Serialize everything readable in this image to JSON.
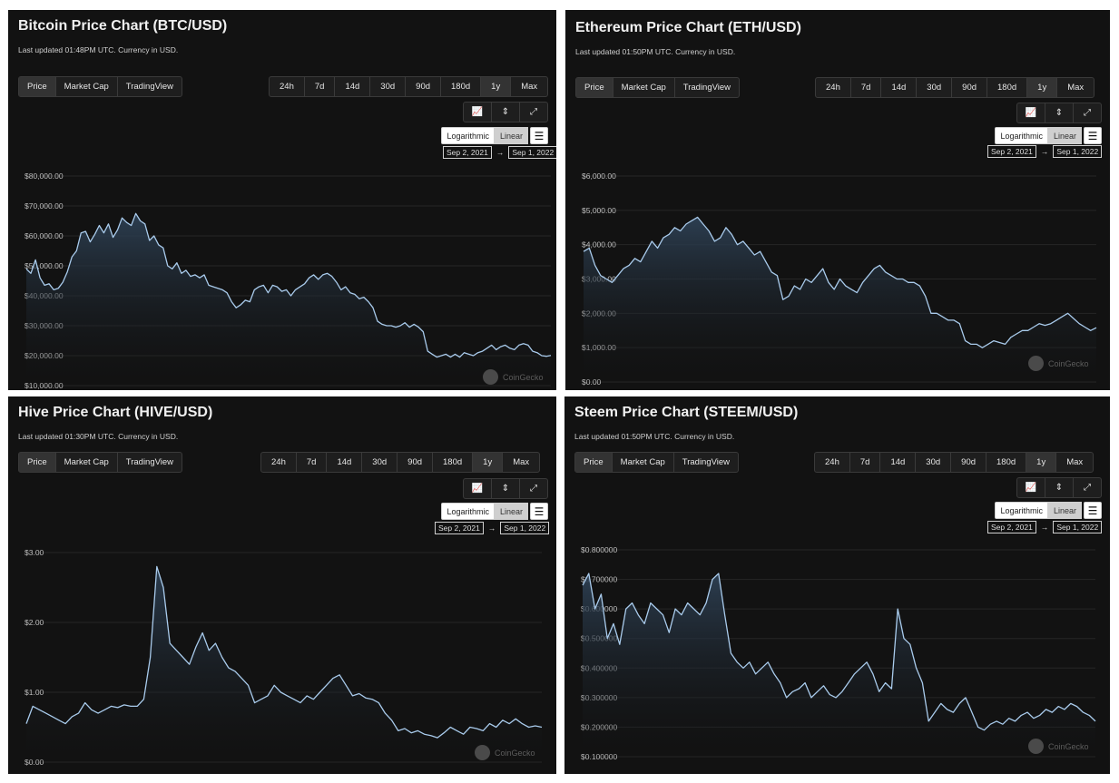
{
  "controls": {
    "tabs": [
      "Price",
      "Market Cap",
      "TradingView"
    ],
    "periods": [
      "24h",
      "7d",
      "14d",
      "30d",
      "90d",
      "180d",
      "1y",
      "Max"
    ],
    "active_period": "1y",
    "scale_log": "Logarithmic",
    "scale_linear": "Linear",
    "menu_glyph": "☰",
    "arrow": "→",
    "watermark": "CoinGecko"
  },
  "colors": {
    "line": "#a9cbec",
    "fill_top": "#2f4358",
    "grid": "#262626",
    "bg": "#121212"
  },
  "icons": [
    "line-chart-icon",
    "candlestick-icon",
    "fullscreen-icon"
  ],
  "panels": [
    {
      "id": "btc",
      "title": "Bitcoin Price Chart (BTC/USD)",
      "subtitle": "Last updated 01:48PM UTC. Currency in USD.",
      "range_start": "Sep 2, 2021",
      "range_end": "Sep 1, 2022",
      "show_watermark": true,
      "chart_data": {
        "type": "area",
        "title": "Bitcoin Price Chart (BTC/USD)",
        "x_start": "Sep 2, 2021",
        "x_end": "Sep 1, 2022",
        "y_ticks": [
          "$80,000.00",
          "$70,000.00",
          "$60,000.00",
          "$50,000.00",
          "$40,000.00",
          "$30,000.00",
          "$20,000.00",
          "$10,000.00"
        ],
        "ylim": [
          10000,
          80000
        ],
        "values": [
          49000,
          47500,
          52000,
          46000,
          43500,
          44000,
          42000,
          42500,
          44500,
          48000,
          53000,
          55000,
          61000,
          61500,
          58000,
          60500,
          63500,
          61000,
          64000,
          59500,
          62000,
          66000,
          64500,
          63500,
          67500,
          65000,
          64000,
          58500,
          60000,
          57000,
          56000,
          50000,
          49000,
          51000,
          47500,
          48500,
          46500,
          47000,
          46000,
          47000,
          43500,
          43000,
          42500,
          42000,
          41000,
          38000,
          36000,
          37000,
          38500,
          38000,
          42000,
          43000,
          43500,
          41000,
          43500,
          43000,
          41500,
          42000,
          40000,
          42000,
          43000,
          44000,
          46000,
          47000,
          45500,
          47000,
          47500,
          46500,
          44500,
          42000,
          43000,
          41000,
          40500,
          39000,
          39500,
          38000,
          36000,
          31500,
          30500,
          30000,
          30000,
          29500,
          30000,
          31000,
          29500,
          30500,
          29500,
          28000,
          21500,
          20500,
          19500,
          20000,
          20500,
          19500,
          20500,
          19500,
          21000,
          20500,
          20000,
          21000,
          21500,
          22500,
          23500,
          22000,
          23000,
          23500,
          22500,
          22000,
          23500,
          24000,
          23500,
          21500,
          21000,
          20000,
          19800,
          20100
        ],
        "xlabel": "",
        "ylabel": ""
      }
    },
    {
      "id": "eth",
      "title": "Ethereum Price Chart (ETH/USD)",
      "subtitle": "Last updated 01:50PM UTC. Currency in USD.",
      "range_start": "Sep 2, 2021",
      "range_end": "Sep 1, 2022",
      "show_watermark": true,
      "chart_data": {
        "type": "area",
        "title": "Ethereum Price Chart (ETH/USD)",
        "x_start": "Sep 2, 2021",
        "x_end": "Sep 1, 2022",
        "y_ticks": [
          "$6,000.00",
          "$5,000.00",
          "$4,000.00",
          "$3,000.00",
          "$2,000.00",
          "$1,000.00",
          "$0.00"
        ],
        "ylim": [
          0,
          6000
        ],
        "values": [
          3800,
          3900,
          3400,
          3100,
          3000,
          2900,
          3100,
          3300,
          3400,
          3600,
          3500,
          3800,
          4100,
          3900,
          4200,
          4300,
          4500,
          4400,
          4600,
          4700,
          4800,
          4600,
          4400,
          4100,
          4200,
          4500,
          4300,
          4000,
          4100,
          3900,
          3700,
          3800,
          3500,
          3200,
          3100,
          2400,
          2500,
          2800,
          2700,
          3000,
          2900,
          3100,
          3300,
          2900,
          2700,
          3000,
          2800,
          2700,
          2600,
          2900,
          3100,
          3300,
          3400,
          3200,
          3100,
          3000,
          3000,
          2900,
          2900,
          2800,
          2500,
          2000,
          2000,
          1900,
          1800,
          1800,
          1700,
          1200,
          1100,
          1100,
          1000,
          1100,
          1200,
          1150,
          1100,
          1300,
          1400,
          1500,
          1500,
          1600,
          1700,
          1650,
          1700,
          1800,
          1900,
          2000,
          1850,
          1700,
          1600,
          1500,
          1580
        ],
        "xlabel": "",
        "ylabel": ""
      }
    },
    {
      "id": "hive",
      "title": "Hive Price Chart (HIVE/USD)",
      "subtitle": "Last updated 01:30PM UTC. Currency in USD.",
      "range_start": "Sep 2, 2021",
      "range_end": "Sep 1, 2022",
      "show_watermark": true,
      "chart_data": {
        "type": "area",
        "title": "Hive Price Chart (HIVE/USD)",
        "x_start": "Sep 2, 2021",
        "x_end": "Sep 1, 2022",
        "y_ticks": [
          "$3.00",
          "$2.00",
          "$1.00",
          "$0.00"
        ],
        "ylim": [
          0,
          3
        ],
        "values": [
          0.55,
          0.8,
          0.75,
          0.7,
          0.65,
          0.6,
          0.55,
          0.65,
          0.7,
          0.85,
          0.75,
          0.7,
          0.75,
          0.8,
          0.78,
          0.82,
          0.8,
          0.8,
          0.9,
          1.5,
          2.8,
          2.5,
          1.7,
          1.6,
          1.5,
          1.4,
          1.65,
          1.85,
          1.6,
          1.7,
          1.5,
          1.35,
          1.3,
          1.2,
          1.1,
          0.85,
          0.9,
          0.95,
          1.1,
          1.0,
          0.95,
          0.9,
          0.85,
          0.95,
          0.9,
          1.0,
          1.1,
          1.2,
          1.25,
          1.1,
          0.95,
          0.98,
          0.92,
          0.9,
          0.85,
          0.7,
          0.6,
          0.45,
          0.48,
          0.42,
          0.45,
          0.4,
          0.38,
          0.35,
          0.42,
          0.5,
          0.45,
          0.4,
          0.5,
          0.48,
          0.45,
          0.55,
          0.5,
          0.6,
          0.55,
          0.62,
          0.55,
          0.5,
          0.52,
          0.5
        ],
        "xlabel": "",
        "ylabel": ""
      }
    },
    {
      "id": "steem",
      "title": "Steem Price Chart (STEEM/USD)",
      "subtitle": "Last updated 01:50PM UTC. Currency in USD.",
      "range_start": "Sep 2, 2021",
      "range_end": "Sep 1, 2022",
      "show_watermark": true,
      "chart_data": {
        "type": "area",
        "title": "Steem Price Chart (STEEM/USD)",
        "x_start": "Sep 2, 2021",
        "x_end": "Sep 1, 2022",
        "y_ticks": [
          "$0.800000",
          "$0.700000",
          "$0.600000",
          "$0.500000",
          "$0.400000",
          "$0.300000",
          "$0.200000",
          "$0.100000"
        ],
        "ylim": [
          0.1,
          0.8
        ],
        "values": [
          0.68,
          0.72,
          0.6,
          0.65,
          0.5,
          0.55,
          0.48,
          0.6,
          0.62,
          0.58,
          0.55,
          0.62,
          0.6,
          0.58,
          0.52,
          0.6,
          0.58,
          0.62,
          0.6,
          0.58,
          0.62,
          0.7,
          0.72,
          0.58,
          0.45,
          0.42,
          0.4,
          0.42,
          0.38,
          0.4,
          0.42,
          0.38,
          0.35,
          0.3,
          0.32,
          0.33,
          0.35,
          0.3,
          0.32,
          0.34,
          0.31,
          0.3,
          0.32,
          0.35,
          0.38,
          0.4,
          0.42,
          0.38,
          0.32,
          0.35,
          0.33,
          0.6,
          0.5,
          0.48,
          0.4,
          0.35,
          0.22,
          0.25,
          0.28,
          0.26,
          0.25,
          0.28,
          0.3,
          0.25,
          0.2,
          0.19,
          0.21,
          0.22,
          0.21,
          0.23,
          0.22,
          0.24,
          0.25,
          0.23,
          0.24,
          0.26,
          0.25,
          0.27,
          0.26,
          0.28,
          0.27,
          0.25,
          0.24,
          0.22
        ]
      }
    }
  ]
}
